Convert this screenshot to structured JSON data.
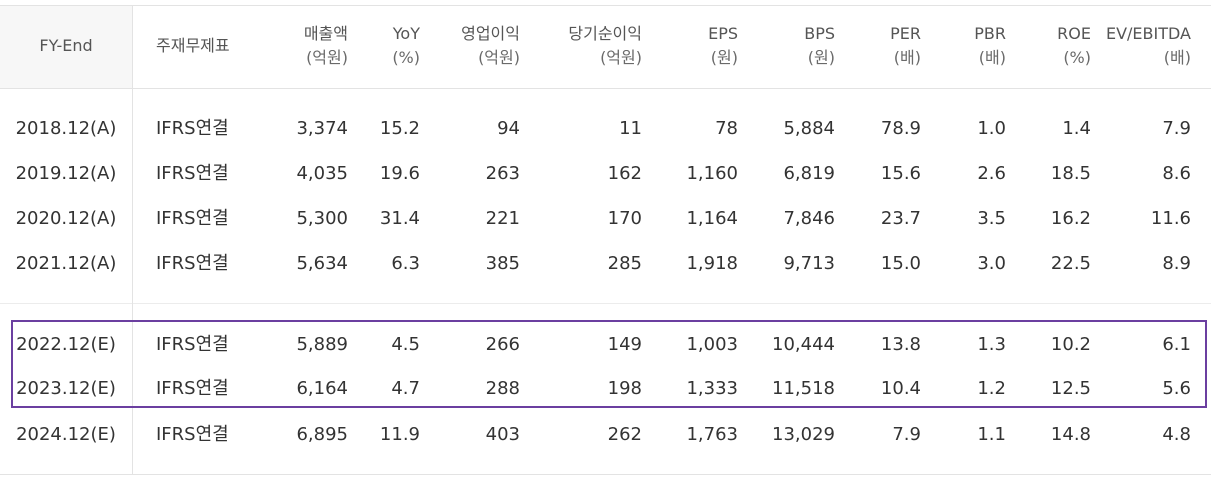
{
  "header": {
    "fy": "FY-End",
    "type": "주재무제표",
    "sales": [
      "매출액",
      "(억원)"
    ],
    "yoy": [
      "YoY",
      "(%)"
    ],
    "op": [
      "영업이익",
      "(억원)"
    ],
    "net": [
      "당기순이익",
      "(억원)"
    ],
    "eps": [
      "EPS",
      "(원)"
    ],
    "bps": [
      "BPS",
      "(원)"
    ],
    "per": [
      "PER",
      "(배)"
    ],
    "pbr": [
      "PBR",
      "(배)"
    ],
    "roe": [
      "ROE",
      "(%)"
    ],
    "ev": [
      "EV/EBITDA",
      "(배)"
    ]
  },
  "rows": [
    {
      "fy": "2018.12(A)",
      "type": "IFRS연결",
      "sales": "3,374",
      "yoy": "15.2",
      "op": "94",
      "net": "11",
      "eps": "78",
      "bps": "5,884",
      "per": "78.9",
      "pbr": "1.0",
      "roe": "1.4",
      "ev": "7.9"
    },
    {
      "fy": "2019.12(A)",
      "type": "IFRS연결",
      "sales": "4,035",
      "yoy": "19.6",
      "op": "263",
      "net": "162",
      "eps": "1,160",
      "bps": "6,819",
      "per": "15.6",
      "pbr": "2.6",
      "roe": "18.5",
      "ev": "8.6"
    },
    {
      "fy": "2020.12(A)",
      "type": "IFRS연결",
      "sales": "5,300",
      "yoy": "31.4",
      "op": "221",
      "net": "170",
      "eps": "1,164",
      "bps": "7,846",
      "per": "23.7",
      "pbr": "3.5",
      "roe": "16.2",
      "ev": "11.6"
    },
    {
      "fy": "2021.12(A)",
      "type": "IFRS연결",
      "sales": "5,634",
      "yoy": "6.3",
      "op": "385",
      "net": "285",
      "eps": "1,918",
      "bps": "9,713",
      "per": "15.0",
      "pbr": "3.0",
      "roe": "22.5",
      "ev": "8.9"
    },
    {
      "fy": "2022.12(E)",
      "type": "IFRS연결",
      "sales": "5,889",
      "yoy": "4.5",
      "op": "266",
      "net": "149",
      "eps": "1,003",
      "bps": "10,444",
      "per": "13.8",
      "pbr": "1.3",
      "roe": "10.2",
      "ev": "6.1"
    },
    {
      "fy": "2023.12(E)",
      "type": "IFRS연결",
      "sales": "6,164",
      "yoy": "4.7",
      "op": "288",
      "net": "198",
      "eps": "1,333",
      "bps": "11,518",
      "per": "10.4",
      "pbr": "1.2",
      "roe": "12.5",
      "ev": "5.6"
    },
    {
      "fy": "2024.12(E)",
      "type": "IFRS연결",
      "sales": "6,895",
      "yoy": "11.9",
      "op": "403",
      "net": "262",
      "eps": "1,763",
      "bps": "13,029",
      "per": "7.9",
      "pbr": "1.1",
      "roe": "14.8",
      "ev": "4.8"
    }
  ],
  "colors": {
    "highlight_border": "#6b3fa0",
    "header_bg": "#f7f7f7",
    "grid": "#e3e3e3"
  }
}
